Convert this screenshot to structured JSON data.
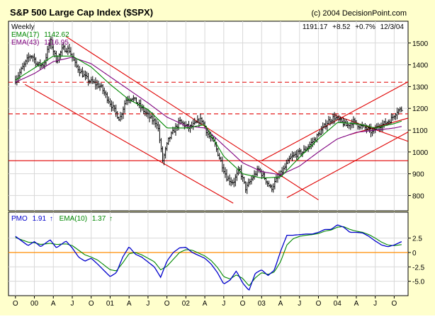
{
  "header": {
    "title": "S&P 500 Large Cap Index ($SPX)",
    "copyright": "(c) 2004 DecisionPoint.com",
    "quote": {
      "last": "1191.17",
      "change": "+8.52",
      "percent": "+0.7%",
      "date": "12/3/04"
    }
  },
  "colors": {
    "frame_background": "#ffffcc",
    "plot_background": "#ffffff",
    "grid": "#d8d8d8",
    "price_bars": "#000000",
    "ema_fast": "#008800",
    "ema_slow": "#7f007f",
    "trendlines": "#e00000",
    "pmo": "#0000cc",
    "pmo_signal": "#008800",
    "zero_line": "#ff8c00"
  },
  "chart_data": [
    {
      "type": "ohlc-bar",
      "period_label": "Weekly",
      "ylim": [
        730,
        1600
      ],
      "y_ticks": [
        800,
        900,
        1000,
        1100,
        1200,
        1300,
        1400,
        1500
      ],
      "grid": true,
      "legend_position": "top-left",
      "x_tick_labels": [
        "O",
        "00",
        "A",
        "J",
        "O",
        "01",
        "A",
        "J",
        "O",
        "02",
        "A",
        "J",
        "O",
        "03",
        "A",
        "J",
        "O",
        "04",
        "A",
        "J",
        "O"
      ],
      "x_tick_months": [
        0,
        3,
        6,
        9,
        12,
        15,
        18,
        21,
        24,
        27,
        30,
        33,
        36,
        39,
        42,
        45,
        48,
        51,
        54,
        57,
        60
      ],
      "x_start": "1999-10",
      "x_end": "2004-12",
      "price_keypoints": [
        [
          0.0,
          1330
        ],
        [
          1.0,
          1380
        ],
        [
          2.2,
          1440
        ],
        [
          2.7,
          1440
        ],
        [
          3.5,
          1400
        ],
        [
          4.5,
          1400
        ],
        [
          5.5,
          1510
        ],
        [
          6.5,
          1420
        ],
        [
          7.5,
          1475
        ],
        [
          8.5,
          1470
        ],
        [
          9.5,
          1400
        ],
        [
          10.5,
          1360
        ],
        [
          11.5,
          1330
        ],
        [
          13.5,
          1300
        ],
        [
          16.5,
          1150
        ],
        [
          17.5,
          1240
        ],
        [
          18.5,
          1250
        ],
        [
          20.0,
          1200
        ],
        [
          21.5,
          1150
        ],
        [
          22.5,
          1130
        ],
        [
          23.3,
          960
        ],
        [
          24.3,
          1060
        ],
        [
          26.0,
          1140
        ],
        [
          27.5,
          1110
        ],
        [
          29.5,
          1150
        ],
        [
          30.5,
          1080
        ],
        [
          31.5,
          1040
        ],
        [
          32.5,
          960
        ],
        [
          33.5,
          880
        ],
        [
          34.5,
          860
        ],
        [
          35.5,
          920
        ],
        [
          36.5,
          830
        ],
        [
          37.5,
          880
        ],
        [
          38.5,
          920
        ],
        [
          39.5,
          880
        ],
        [
          40.5,
          830
        ],
        [
          41.5,
          880
        ],
        [
          42.5,
          920
        ],
        [
          43.5,
          970
        ],
        [
          44.5,
          990
        ],
        [
          45.5,
          1000
        ],
        [
          46.5,
          1030
        ],
        [
          47.5,
          1060
        ],
        [
          48.5,
          1100
        ],
        [
          49.5,
          1140
        ],
        [
          50.5,
          1160
        ],
        [
          51.5,
          1140
        ],
        [
          52.5,
          1120
        ],
        [
          53.5,
          1140
        ],
        [
          54.5,
          1120
        ],
        [
          55.5,
          1110
        ],
        [
          56.5,
          1090
        ],
        [
          57.5,
          1120
        ],
        [
          58.5,
          1130
        ],
        [
          59.5,
          1150
        ],
        [
          60.5,
          1190
        ],
        [
          61.2,
          1195
        ]
      ],
      "series": [
        {
          "name": "EMA(17)",
          "value": "1142.62",
          "keypoints": [
            [
              0,
              1330
            ],
            [
              3,
              1385
            ],
            [
              6,
              1440
            ],
            [
              9,
              1440
            ],
            [
              12,
              1390
            ],
            [
              15,
              1310
            ],
            [
              18,
              1240
            ],
            [
              21,
              1195
            ],
            [
              24,
              1110
            ],
            [
              27,
              1110
            ],
            [
              30,
              1125
            ],
            [
              33,
              980
            ],
            [
              36,
              900
            ],
            [
              39,
              880
            ],
            [
              42,
              885
            ],
            [
              45,
              975
            ],
            [
              48,
              1060
            ],
            [
              51,
              1135
            ],
            [
              54,
              1130
            ],
            [
              57,
              1110
            ],
            [
              60,
              1130
            ],
            [
              61.2,
              1142
            ]
          ]
        },
        {
          "name": "EMA(43)",
          "value": "1116.95",
          "keypoints": [
            [
              0,
              1320
            ],
            [
              3,
              1360
            ],
            [
              6,
              1415
            ],
            [
              9,
              1435
            ],
            [
              12,
              1405
            ],
            [
              15,
              1345
            ],
            [
              18,
              1285
            ],
            [
              21,
              1225
            ],
            [
              24,
              1160
            ],
            [
              27,
              1120
            ],
            [
              30,
              1110
            ],
            [
              33,
              1030
            ],
            [
              36,
              950
            ],
            [
              39,
              910
            ],
            [
              42,
              895
            ],
            [
              45,
              935
            ],
            [
              48,
              1000
            ],
            [
              51,
              1060
            ],
            [
              54,
              1090
            ],
            [
              57,
              1100
            ],
            [
              60,
              1110
            ],
            [
              61.2,
              1117
            ]
          ]
        }
      ],
      "horizontal_lines": [
        {
          "y": 1320,
          "style": "dashed"
        },
        {
          "y": 1175,
          "style": "dashed"
        },
        {
          "y": 960,
          "style": "solid"
        }
      ],
      "trendlines": [
        {
          "from": [
            8.0,
            1530
          ],
          "to": [
            48.0,
            780
          ]
        },
        {
          "from": [
            1.5,
            1310
          ],
          "to": [
            34.5,
            765
          ]
        },
        {
          "from": [
            43.0,
            790
          ],
          "to": [
            64.0,
            1120
          ]
        },
        {
          "from": [
            39.0,
            960
          ],
          "to": [
            64.0,
            1350
          ]
        },
        {
          "from": [
            50.0,
            1175
          ],
          "to": [
            64.0,
            1030
          ]
        },
        {
          "from": [
            53.0,
            1080
          ],
          "to": [
            64.0,
            1170
          ]
        }
      ]
    },
    {
      "type": "line",
      "ylim": [
        -7.5,
        7.0
      ],
      "y_ticks": [
        -5.0,
        -2.5,
        0,
        2.5
      ],
      "grid": true,
      "legend_position": "top-left",
      "zero_line": 0,
      "series": [
        {
          "name": "PMO",
          "value": "1.91",
          "keypoints": [
            [
              0,
              2.8
            ],
            [
              1,
              2.0
            ],
            [
              2,
              1.2
            ],
            [
              3,
              1.9
            ],
            [
              4,
              1.0
            ],
            [
              5.5,
              2.2
            ],
            [
              6.5,
              0.8
            ],
            [
              8,
              2.0
            ],
            [
              9,
              0.8
            ],
            [
              10,
              -0.8
            ],
            [
              11,
              -1.5
            ],
            [
              12,
              -1.0
            ],
            [
              13,
              -2.0
            ],
            [
              15,
              -4.2
            ],
            [
              16,
              -3.5
            ],
            [
              17,
              -0.8
            ],
            [
              18,
              1.0
            ],
            [
              19,
              -0.3
            ],
            [
              20,
              -0.8
            ],
            [
              22,
              -2.5
            ],
            [
              23,
              -4.3
            ],
            [
              24,
              -1.5
            ],
            [
              25,
              0.0
            ],
            [
              26,
              0.8
            ],
            [
              27,
              0.9
            ],
            [
              28,
              0.0
            ],
            [
              29,
              -0.5
            ],
            [
              30,
              -1.0
            ],
            [
              31,
              -2.0
            ],
            [
              32,
              -3.5
            ],
            [
              33,
              -5.5
            ],
            [
              34,
              -4.8
            ],
            [
              35,
              -3.2
            ],
            [
              36,
              -5.3
            ],
            [
              37,
              -6.6
            ],
            [
              38,
              -3.6
            ],
            [
              39,
              -3.0
            ],
            [
              40,
              -4.0
            ],
            [
              41,
              -3.1
            ],
            [
              42,
              0.2
            ],
            [
              43,
              3.0
            ],
            [
              44,
              3.0
            ],
            [
              45,
              3.1
            ],
            [
              46,
              3.2
            ],
            [
              47,
              3.2
            ],
            [
              48,
              3.5
            ],
            [
              49,
              4.0
            ],
            [
              50,
              4.0
            ],
            [
              51,
              4.8
            ],
            [
              52,
              4.4
            ],
            [
              53,
              3.5
            ],
            [
              54,
              3.5
            ],
            [
              55,
              3.4
            ],
            [
              56,
              2.8
            ],
            [
              57,
              2.0
            ],
            [
              58,
              1.3
            ],
            [
              59,
              1.0
            ],
            [
              60,
              1.3
            ],
            [
              61.2,
              1.9
            ]
          ]
        },
        {
          "name": "EMA(10)",
          "value": "1.37",
          "keypoints": [
            [
              0,
              2.6
            ],
            [
              1,
              2.2
            ],
            [
              2,
              1.8
            ],
            [
              3,
              1.7
            ],
            [
              4,
              1.4
            ],
            [
              5.5,
              1.6
            ],
            [
              6.5,
              1.4
            ],
            [
              8,
              1.5
            ],
            [
              9,
              1.2
            ],
            [
              10,
              0.4
            ],
            [
              11,
              -0.4
            ],
            [
              12,
              -0.8
            ],
            [
              13,
              -1.3
            ],
            [
              15,
              -3.0
            ],
            [
              16,
              -3.2
            ],
            [
              17,
              -1.8
            ],
            [
              18,
              -0.2
            ],
            [
              19,
              0.0
            ],
            [
              20,
              -0.4
            ],
            [
              22,
              -1.6
            ],
            [
              23,
              -3.0
            ],
            [
              24,
              -2.4
            ],
            [
              25,
              -1.2
            ],
            [
              26,
              0.0
            ],
            [
              27,
              0.5
            ],
            [
              28,
              0.4
            ],
            [
              29,
              -0.1
            ],
            [
              30,
              -0.6
            ],
            [
              31,
              -1.4
            ],
            [
              32,
              -2.6
            ],
            [
              33,
              -4.2
            ],
            [
              34,
              -4.6
            ],
            [
              35,
              -3.9
            ],
            [
              36,
              -4.5
            ],
            [
              37,
              -5.8
            ],
            [
              38,
              -4.4
            ],
            [
              39,
              -3.5
            ],
            [
              40,
              -3.8
            ],
            [
              41,
              -3.4
            ],
            [
              42,
              -1.6
            ],
            [
              43,
              1.3
            ],
            [
              44,
              2.4
            ],
            [
              45,
              2.8
            ],
            [
              46,
              3.0
            ],
            [
              47,
              3.1
            ],
            [
              48,
              3.3
            ],
            [
              49,
              3.7
            ],
            [
              50,
              3.9
            ],
            [
              51,
              4.4
            ],
            [
              52,
              4.5
            ],
            [
              53,
              4.0
            ],
            [
              54,
              3.7
            ],
            [
              55,
              3.5
            ],
            [
              56,
              3.1
            ],
            [
              57,
              2.5
            ],
            [
              58,
              1.8
            ],
            [
              59,
              1.3
            ],
            [
              60,
              1.2
            ],
            [
              61.2,
              1.37
            ]
          ]
        }
      ]
    }
  ]
}
